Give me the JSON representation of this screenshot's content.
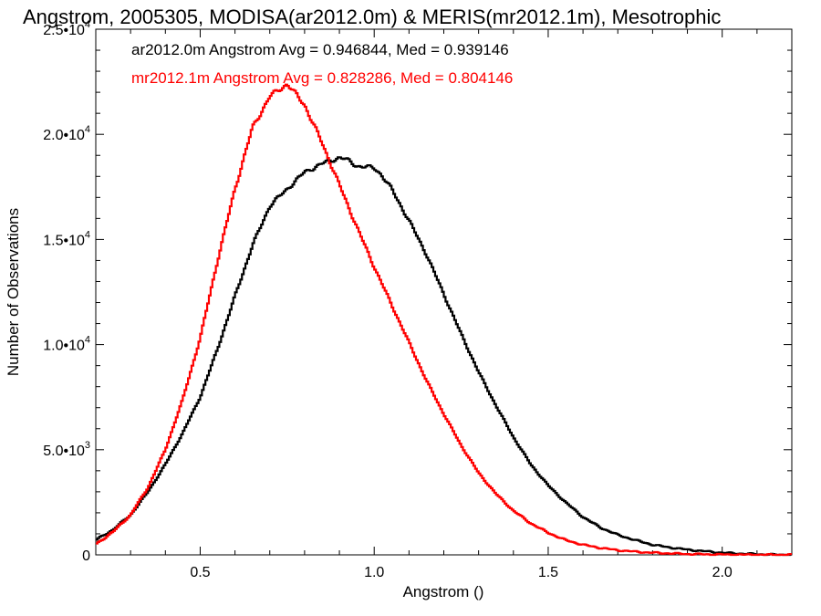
{
  "chart_data": {
    "type": "line",
    "title": "Angstrom, 2005305, MODISA(ar2012.0m) & MERIS(mr2012.1m), Mesotrophic",
    "xlabel": "Angstrom ()",
    "ylabel": "Number of Observations",
    "xlim": [
      0.2,
      2.2
    ],
    "ylim": [
      0,
      25000
    ],
    "xticks": [
      0.5,
      1.0,
      1.5,
      2.0
    ],
    "xtick_labels": [
      "0.5",
      "1.0",
      "1.5",
      "2.0"
    ],
    "yticks": [
      0,
      5000,
      10000,
      15000,
      20000,
      25000
    ],
    "ytick_labels": [
      {
        "mant": "0",
        "exp": ""
      },
      {
        "mant": "5.0•10",
        "exp": "3"
      },
      {
        "mant": "1.0•10",
        "exp": "4"
      },
      {
        "mant": "1.5•10",
        "exp": "4"
      },
      {
        "mant": "2.0•10",
        "exp": "4"
      },
      {
        "mant": "2.5•10",
        "exp": "4"
      }
    ],
    "grid": false,
    "series": [
      {
        "name": "ar2012.0m",
        "color": "#000000",
        "annotation": "ar2012.0m Angstrom Avg = 0.946844, Med = 0.939146",
        "x": [
          0.2,
          0.25,
          0.3,
          0.35,
          0.4,
          0.45,
          0.5,
          0.55,
          0.6,
          0.65,
          0.7,
          0.75,
          0.8,
          0.85,
          0.9,
          0.92,
          0.95,
          1.0,
          1.02,
          1.05,
          1.1,
          1.15,
          1.2,
          1.25,
          1.3,
          1.35,
          1.4,
          1.45,
          1.5,
          1.55,
          1.6,
          1.65,
          1.7,
          1.75,
          1.8,
          1.85,
          1.9,
          1.95,
          2.0,
          2.05,
          2.1,
          2.15,
          2.2
        ],
        "values": [
          700,
          1200,
          1900,
          3000,
          4300,
          5800,
          7500,
          9800,
          12300,
          14700,
          16600,
          17400,
          18200,
          18600,
          18900,
          18800,
          18500,
          18400,
          18100,
          17400,
          15900,
          14300,
          12400,
          10500,
          8700,
          7100,
          5600,
          4300,
          3300,
          2500,
          1800,
          1300,
          950,
          700,
          480,
          350,
          250,
          170,
          100,
          60,
          30,
          10,
          0
        ]
      },
      {
        "name": "mr2012.1m",
        "color": "#ff0000",
        "annotation": "mr2012.1m Angstrom Avg = 0.828286, Med = 0.804146",
        "x": [
          0.2,
          0.25,
          0.3,
          0.35,
          0.4,
          0.45,
          0.5,
          0.55,
          0.6,
          0.65,
          0.7,
          0.75,
          0.8,
          0.85,
          0.9,
          0.95,
          1.0,
          1.05,
          1.1,
          1.15,
          1.2,
          1.25,
          1.3,
          1.35,
          1.4,
          1.45,
          1.5,
          1.55,
          1.6,
          1.65,
          1.7,
          1.75,
          1.8,
          1.85,
          1.9,
          1.95,
          2.0,
          2.05,
          2.1,
          2.2
        ],
        "values": [
          500,
          1100,
          1900,
          3200,
          5000,
          7400,
          10300,
          14000,
          17400,
          20300,
          21800,
          22400,
          21400,
          19600,
          17600,
          15600,
          13700,
          11900,
          10100,
          8300,
          6700,
          5200,
          3900,
          2900,
          2100,
          1500,
          1050,
          700,
          480,
          330,
          220,
          150,
          100,
          70,
          40,
          25,
          15,
          8,
          4,
          0
        ]
      }
    ]
  }
}
